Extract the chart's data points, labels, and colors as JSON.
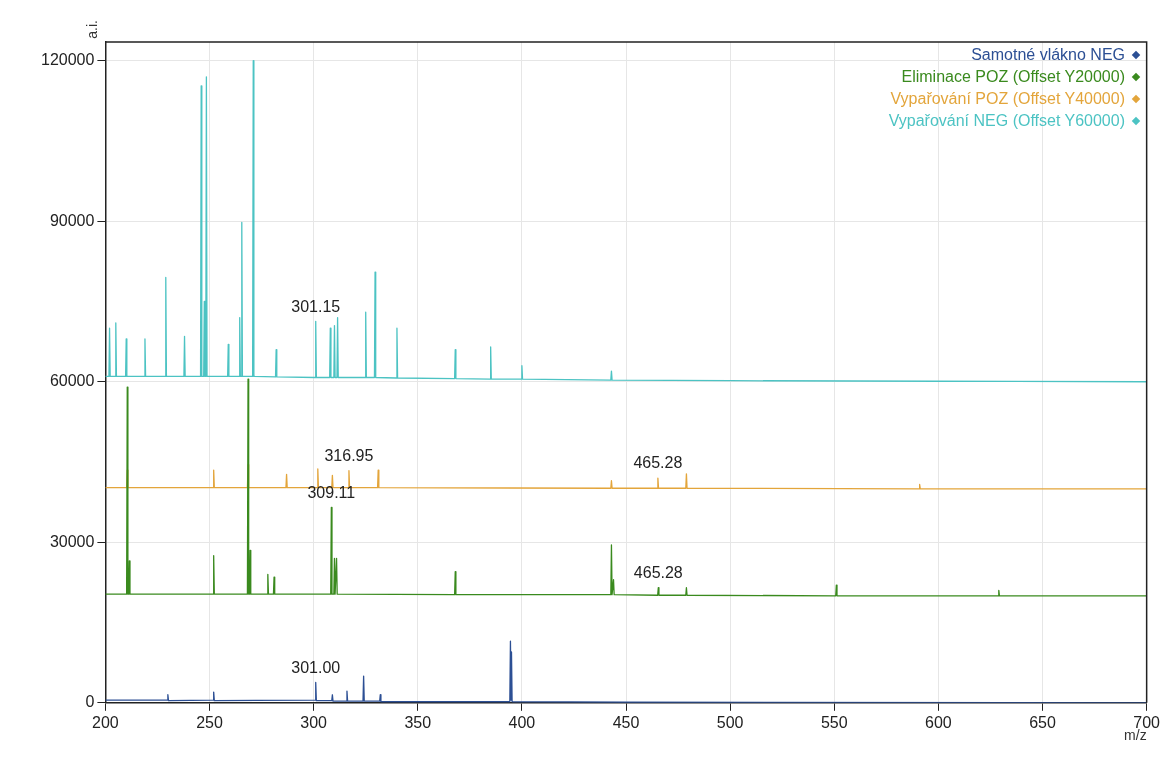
{
  "chart_data": {
    "type": "line",
    "xlabel": "m/z",
    "ylabel": "a.i.",
    "xlim": [
      200,
      700
    ],
    "ylim": [
      0,
      123500
    ],
    "xticks": [
      200,
      250,
      300,
      350,
      400,
      450,
      500,
      550,
      600,
      650,
      700
    ],
    "yticks": [
      0,
      30000,
      60000,
      90000,
      120000
    ],
    "grid": true,
    "legend": "top right",
    "series": [
      {
        "name": "Samotné vlákno NEG",
        "color": "#2c4f94",
        "x": [
          200,
          229.7,
          230,
          230.3,
          251.7,
          252,
          252.3,
          300.7,
          301,
          301.3,
          308.7,
          309,
          309.3,
          315.7,
          316,
          316.3,
          323.7,
          324,
          324.3,
          331.7,
          332,
          332.3,
          394.2,
          394.5,
          394.8,
          395,
          395.3,
          450,
          700
        ],
        "values": [
          500,
          500,
          1500,
          400,
          500,
          2000,
          400,
          500,
          3800,
          400,
          400,
          1500,
          300,
          300,
          2200,
          300,
          300,
          5000,
          300,
          300,
          1500,
          200,
          200,
          11500,
          500,
          9500,
          200,
          100,
          0
        ]
      },
      {
        "name": "Eliminace POZ (Offset Y20000)",
        "color": "#3a8a1e",
        "x": [
          200,
          210.2,
          210.5,
          210.8,
          211.2,
          211.5,
          211.8,
          251.7,
          252,
          252.3,
          268.2,
          268.5,
          268.8,
          269.2,
          269.5,
          269.8,
          277.7,
          278,
          278.3,
          280.7,
          281,
          281.3,
          308.2,
          308.5,
          308.8,
          309.7,
          310,
          310.3,
          310.7,
          311,
          311.3,
          367.7,
          368,
          368.3,
          442.7,
          443,
          443.3,
          443.7,
          444,
          444.3,
          465.2,
          465.5,
          465.8,
          478.7,
          479,
          479.3,
          550.7,
          551,
          551.3,
          628.7,
          629,
          629.3,
          700
        ],
        "values": [
          20300,
          20300,
          59000,
          20300,
          20300,
          26500,
          20300,
          20300,
          27500,
          20300,
          20300,
          60500,
          20300,
          20300,
          28500,
          20300,
          20300,
          24000,
          20300,
          20300,
          23500,
          20300,
          20300,
          36500,
          20300,
          20300,
          27000,
          20300,
          20300,
          27000,
          20300,
          20200,
          24500,
          20200,
          20200,
          29500,
          20200,
          20200,
          23000,
          20200,
          20100,
          21500,
          20100,
          20100,
          21500,
          20100,
          20000,
          22000,
          20000,
          20000,
          21000,
          20000,
          20000
        ]
      },
      {
        "name": "Vypařování POZ (Offset Y40000)",
        "color": "#e3a53b",
        "x": [
          200,
          210.2,
          210.5,
          210.8,
          251.7,
          252,
          252.3,
          268.2,
          268.5,
          268.8,
          286.7,
          287,
          287.3,
          301.7,
          302,
          302.3,
          308.7,
          309,
          309.3,
          316.65,
          316.95,
          317.25,
          330.7,
          331,
          331.3,
          442.7,
          443,
          443.3,
          465,
          465.3,
          465.6,
          478.7,
          479,
          479.3,
          590.7,
          591,
          591.3,
          700
        ],
        "values": [
          40200,
          40200,
          43500,
          40200,
          40200,
          43500,
          40200,
          40200,
          44500,
          40200,
          40200,
          42700,
          40200,
          40200,
          43700,
          40200,
          40200,
          42500,
          40200,
          40200,
          43400,
          40200,
          40200,
          43500,
          40200,
          40100,
          41500,
          40100,
          40100,
          42000,
          40100,
          40100,
          42800,
          40100,
          40000,
          40800,
          40000,
          40000
        ]
      },
      {
        "name": "Vypařování NEG (Offset Y60000)",
        "color": "#4cc3c3",
        "x": [
          200,
          201.7,
          202,
          202.3,
          204.7,
          205,
          205.3,
          209.7,
          210,
          210.3,
          218.7,
          219,
          219.3,
          228.7,
          229,
          229.3,
          237.7,
          238,
          238.3,
          245.7,
          246,
          246.3,
          247.2,
          247.5,
          247.8,
          248.2,
          248.5,
          248.8,
          258.7,
          259,
          259.3,
          264.2,
          264.5,
          264.8,
          265.2,
          265.5,
          265.8,
          270.7,
          271,
          271.3,
          281.7,
          282,
          282.3,
          300.7,
          301,
          301.3,
          307.7,
          308,
          308.3,
          309.7,
          310,
          310.3,
          311.2,
          311.5,
          311.8,
          324.7,
          325,
          325.3,
          329.2,
          329.5,
          329.8,
          339.7,
          340,
          340.3,
          367.7,
          368,
          368.3,
          384.7,
          385,
          385.3,
          399.7,
          400,
          400.3,
          442.7,
          443,
          443.3,
          500,
          600,
          700
        ],
        "values": [
          61000,
          61000,
          70000,
          61000,
          61000,
          71000,
          61000,
          61000,
          68000,
          61000,
          61000,
          68000,
          61000,
          61000,
          79500,
          61000,
          61000,
          68500,
          61000,
          61000,
          115300,
          61000,
          61000,
          75000,
          61000,
          61000,
          117000,
          61000,
          61000,
          67000,
          61000,
          61000,
          72000,
          61000,
          61000,
          89800,
          61000,
          61000,
          120000,
          61000,
          60900,
          66000,
          60900,
          60800,
          71300,
          60800,
          60800,
          70000,
          60800,
          60800,
          70500,
          60800,
          60800,
          72000,
          60800,
          60800,
          73000,
          60800,
          60800,
          80500,
          60800,
          60700,
          70000,
          60700,
          60600,
          66000,
          60600,
          60500,
          66500,
          60500,
          60500,
          63000,
          60500,
          60300,
          62000,
          60300,
          60200,
          60100,
          60000
        ]
      }
    ],
    "annotations": [
      {
        "text": "301.15",
        "x": 301,
        "y": 71300
      },
      {
        "text": "316.95",
        "x": 316.95,
        "y": 43400
      },
      {
        "text": "309.11",
        "x": 308.5,
        "y": 36500
      },
      {
        "text": "465.28",
        "x": 465.3,
        "y": 42000
      },
      {
        "text": "465.28",
        "x": 465.5,
        "y": 21500
      },
      {
        "text": "301.00",
        "x": 301,
        "y": 3800
      }
    ]
  }
}
